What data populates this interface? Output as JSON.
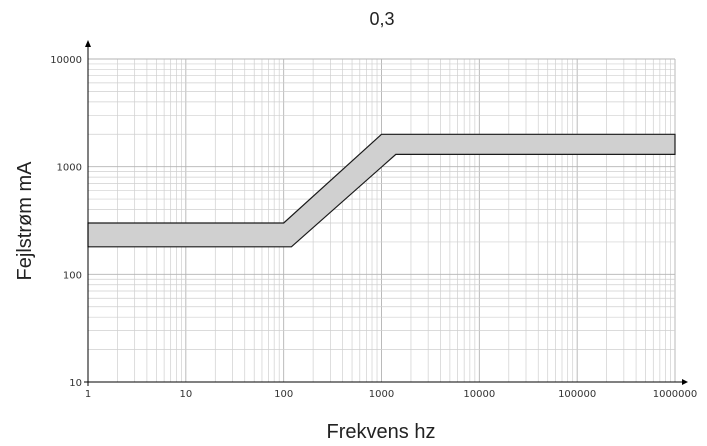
{
  "chart_data": {
    "type": "area",
    "title": "0,3",
    "xlabel": "Frekvens hz",
    "ylabel": "Fejlstrøm mA",
    "x_scale": "log",
    "y_scale": "log",
    "xlim": [
      1,
      1000000
    ],
    "ylim": [
      10,
      10000
    ],
    "grid": true,
    "x_ticks": [
      {
        "value": 1,
        "label": "1"
      },
      {
        "value": 10,
        "label": "10"
      },
      {
        "value": 100,
        "label": "100"
      },
      {
        "value": 1000,
        "label": "1000"
      },
      {
        "value": 10000,
        "label": "10000"
      },
      {
        "value": 100000,
        "label": "100000"
      },
      {
        "value": 1000000,
        "label": "1000000"
      }
    ],
    "y_ticks": [
      {
        "value": 10,
        "label": "10"
      },
      {
        "value": 100,
        "label": "100"
      },
      {
        "value": 1000,
        "label": "1000"
      },
      {
        "value": 10000,
        "label": "10000"
      }
    ],
    "series": [
      {
        "role": "upper",
        "x": [
          1,
          100,
          1000,
          1000000
        ],
        "y": [
          300,
          300,
          2000,
          2000
        ]
      },
      {
        "role": "lower",
        "x": [
          1,
          120,
          1400,
          1000000
        ],
        "y": [
          180,
          180,
          1300,
          1300
        ]
      }
    ],
    "colors": {
      "band_fill": "#d0d0d0",
      "band_stroke": "#1a1a1a"
    }
  }
}
